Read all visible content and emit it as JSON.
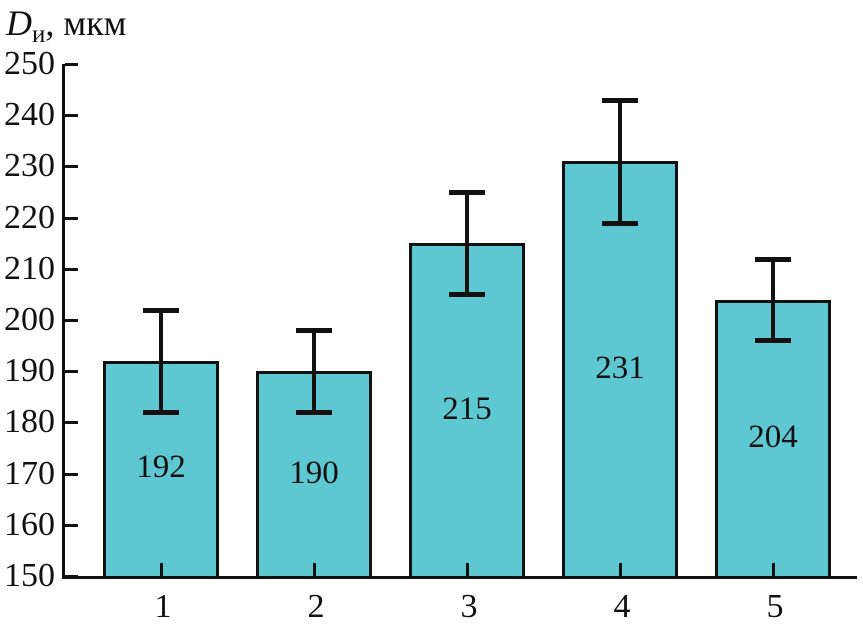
{
  "header": {
    "title_d": "D",
    "title_sub": "и",
    "title_rest": ", мкм"
  },
  "colors": {
    "bar_fill": "#5dc8d2",
    "bar_border": "#111111",
    "axis": "#111111",
    "text": "#111111"
  },
  "chart_data": {
    "type": "bar",
    "title": "Dи, мкм",
    "ylabel": "Dи, мкм",
    "xlabel": "",
    "categories": [
      "1",
      "2",
      "3",
      "4",
      "5"
    ],
    "values": [
      192,
      190,
      215,
      231,
      204
    ],
    "bar_value_labels": [
      "192",
      "190",
      "215",
      "231",
      "204"
    ],
    "error_bars": {
      "plus": [
        10,
        8,
        10,
        12,
        8
      ],
      "minus": [
        10,
        8,
        10,
        12,
        8
      ]
    },
    "ylim": [
      150,
      250
    ],
    "y_ticks": [
      150,
      160,
      170,
      180,
      190,
      200,
      210,
      220,
      230,
      240,
      250
    ],
    "grid": false,
    "legend": "none",
    "bar_color": "#5dc8d2"
  }
}
